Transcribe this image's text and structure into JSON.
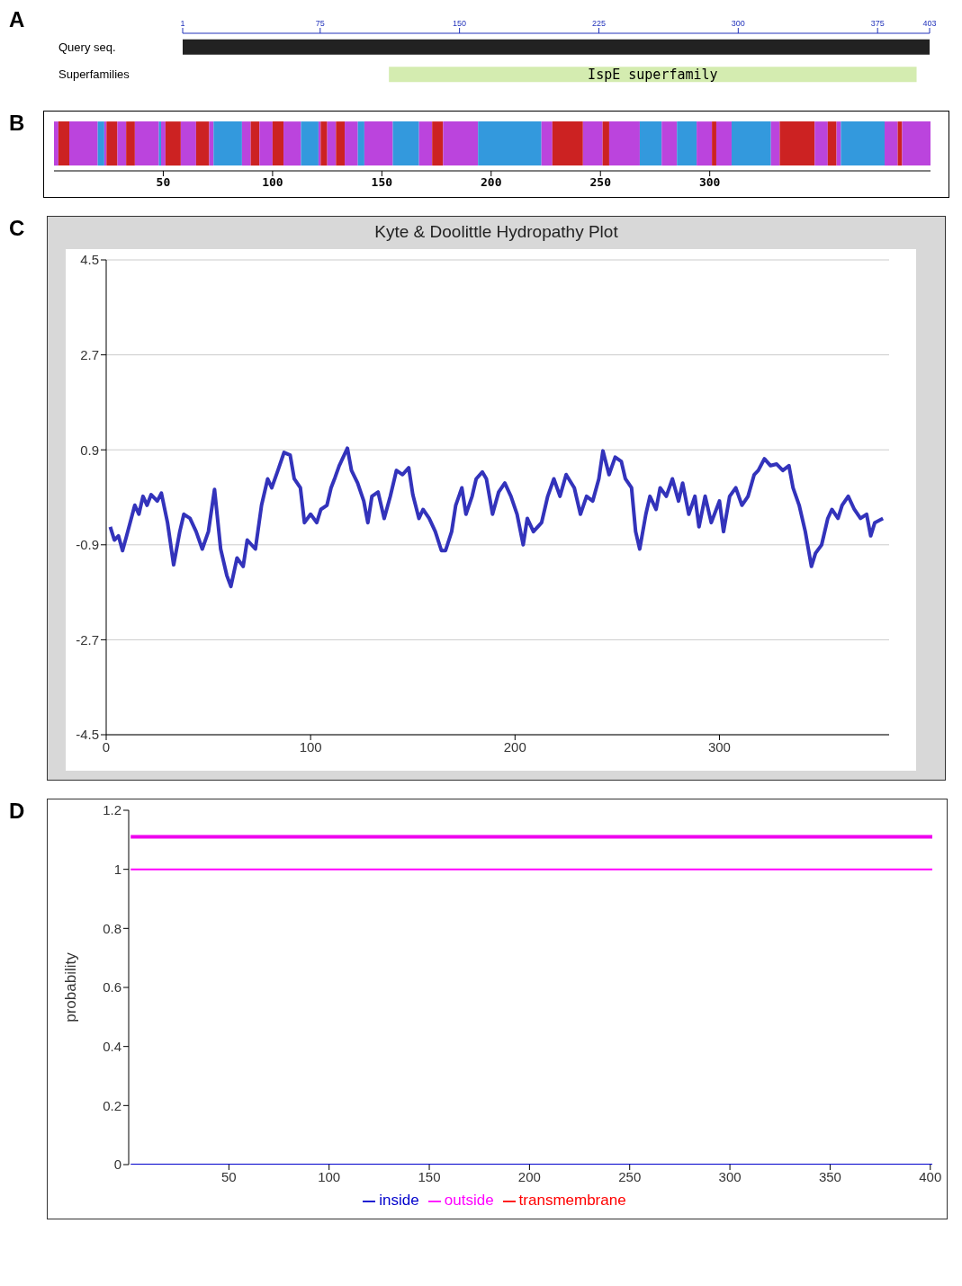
{
  "chart_data": [
    {
      "type": "bar",
      "orientation": "horizontal",
      "categories": [
        "Query seq.",
        "Superfamilies"
      ],
      "base": [
        1,
        112
      ],
      "values": [
        402,
        284
      ],
      "colors": [
        "#222222",
        "#d4ecb0"
      ],
      "xlim": [
        1,
        403
      ],
      "xticks": [
        1,
        75,
        150,
        225,
        300,
        375,
        403
      ],
      "annotations": [
        "A",
        {
          "text": "IspE superfamily",
          "x": 254,
          "y": "Superfamilies"
        }
      ]
    },
    {
      "type": "bar",
      "orientation": "horizontal",
      "stacked": true,
      "categories": [
        null
      ],
      "xlim": [
        0,
        401
      ],
      "xticks": [
        50,
        100,
        150,
        200,
        250,
        300
      ],
      "annotations": [
        "B"
      ],
      "series": [
        {
          "color": "#bb44dd",
          "values": [
            2
          ]
        },
        {
          "color": "#cc2222",
          "values": [
            5
          ]
        },
        {
          "color": "#bb44dd",
          "values": [
            13
          ]
        },
        {
          "color": "#3399dd",
          "values": [
            3
          ]
        },
        {
          "color": "#bb44dd",
          "values": [
            1
          ]
        },
        {
          "color": "#cc2222",
          "values": [
            5
          ]
        },
        {
          "color": "#bb44dd",
          "values": [
            4
          ]
        },
        {
          "color": "#cc2222",
          "values": [
            4
          ]
        },
        {
          "color": "#bb44dd",
          "values": [
            11
          ]
        },
        {
          "color": "#3399dd",
          "values": [
            1
          ]
        },
        {
          "color": "#bb44dd",
          "values": [
            2
          ]
        },
        {
          "color": "#cc2222",
          "values": [
            7
          ]
        },
        {
          "color": "#bb44dd",
          "values": [
            7
          ]
        },
        {
          "color": "#cc2222",
          "values": [
            6
          ]
        },
        {
          "color": "#bb44dd",
          "values": [
            2
          ]
        },
        {
          "color": "#3399dd",
          "values": [
            13
          ]
        },
        {
          "color": "#bb44dd",
          "values": [
            4
          ]
        },
        {
          "color": "#cc2222",
          "values": [
            4
          ]
        },
        {
          "color": "#bb44dd",
          "values": [
            6
          ]
        },
        {
          "color": "#cc2222",
          "values": [
            5
          ]
        },
        {
          "color": "#bb44dd",
          "values": [
            8
          ]
        },
        {
          "color": "#3399dd",
          "values": [
            8
          ]
        },
        {
          "color": "#bb44dd",
          "values": [
            1
          ]
        },
        {
          "color": "#cc2222",
          "values": [
            3
          ]
        },
        {
          "color": "#bb44dd",
          "values": [
            4
          ]
        },
        {
          "color": "#cc2222",
          "values": [
            4
          ]
        },
        {
          "color": "#bb44dd",
          "values": [
            6
          ]
        },
        {
          "color": "#3399dd",
          "values": [
            3
          ]
        },
        {
          "color": "#bb44dd",
          "values": [
            13
          ]
        },
        {
          "color": "#3399dd",
          "values": [
            12
          ]
        },
        {
          "color": "#bb44dd",
          "values": [
            6
          ]
        },
        {
          "color": "#cc2222",
          "values": [
            5
          ]
        },
        {
          "color": "#bb44dd",
          "values": [
            16
          ]
        },
        {
          "color": "#3399dd",
          "values": [
            29
          ]
        },
        {
          "color": "#bb44dd",
          "values": [
            5
          ]
        },
        {
          "color": "#cc2222",
          "values": [
            14
          ]
        },
        {
          "color": "#bb44dd",
          "values": [
            9
          ]
        },
        {
          "color": "#cc2222",
          "values": [
            3
          ]
        },
        {
          "color": "#bb44dd",
          "values": [
            14
          ]
        },
        {
          "color": "#3399dd",
          "values": [
            10
          ]
        },
        {
          "color": "#bb44dd",
          "values": [
            7
          ]
        },
        {
          "color": "#3399dd",
          "values": [
            9
          ]
        },
        {
          "color": "#bb44dd",
          "values": [
            7
          ]
        },
        {
          "color": "#cc2222",
          "values": [
            2
          ]
        },
        {
          "color": "#bb44dd",
          "values": [
            7
          ]
        },
        {
          "color": "#3399dd",
          "values": [
            18
          ]
        },
        {
          "color": "#bb44dd",
          "values": [
            4
          ]
        },
        {
          "color": "#cc2222",
          "values": [
            16
          ]
        },
        {
          "color": "#bb44dd",
          "values": [
            6
          ]
        },
        {
          "color": "#cc2222",
          "values": [
            4
          ]
        },
        {
          "color": "#bb44dd",
          "values": [
            2
          ]
        },
        {
          "color": "#3399dd",
          "values": [
            20
          ]
        },
        {
          "color": "#bb44dd",
          "values": [
            6
          ]
        },
        {
          "color": "#cc2222",
          "values": [
            2
          ]
        },
        {
          "color": "#bb44dd",
          "values": [
            13
          ]
        }
      ]
    },
    {
      "type": "line",
      "title": "Kyte & Doolittle Hydropathy Plot",
      "xlim": [
        0,
        383
      ],
      "xticks": [
        0,
        100,
        200,
        300
      ],
      "ylim": [
        -4.5,
        4.5
      ],
      "yticks": [
        -4.5,
        -2.7,
        -0.9,
        0.9,
        2.7,
        4.5
      ],
      "grid": "y",
      "annotations": [
        "C"
      ],
      "series": [
        {
          "color": "#3333bb",
          "x": [
            2,
            4,
            6,
            8,
            10,
            14,
            16,
            18,
            20,
            22,
            25,
            27,
            30,
            33,
            36,
            38,
            41,
            44,
            47,
            50,
            53,
            56,
            59,
            61,
            64,
            67,
            69,
            73,
            76,
            79,
            81,
            84,
            87,
            90,
            92,
            95,
            97,
            100,
            103,
            105,
            108,
            110,
            112,
            114,
            118,
            120,
            123,
            126,
            128,
            130,
            133,
            136,
            139,
            142,
            145,
            148,
            150,
            153,
            155,
            158,
            161,
            164,
            166,
            169,
            171,
            174,
            176,
            179,
            181,
            184,
            186,
            189,
            192,
            195,
            198,
            201,
            204,
            206,
            209,
            213,
            216,
            219,
            222,
            225,
            229,
            232,
            235,
            238,
            241,
            243,
            246,
            249,
            252,
            254,
            257,
            259,
            261,
            264,
            266,
            269,
            271,
            274,
            277,
            280,
            282,
            285,
            288,
            290,
            293,
            296,
            300,
            302,
            305,
            308,
            311,
            314,
            317,
            319,
            322,
            325,
            328,
            331,
            334,
            336,
            339,
            342,
            345,
            347,
            350,
            353,
            355,
            358,
            360,
            363,
            366,
            369,
            372,
            374,
            376,
            380
          ],
          "values": [
            -0.56,
            -0.81,
            -0.73,
            -1.01,
            -0.73,
            -0.15,
            -0.32,
            0.02,
            -0.15,
            0.05,
            -0.07,
            0.08,
            -0.48,
            -1.28,
            -0.65,
            -0.32,
            -0.4,
            -0.65,
            -0.98,
            -0.65,
            0.15,
            -0.98,
            -1.48,
            -1.69,
            -1.15,
            -1.31,
            -0.81,
            -0.98,
            -0.15,
            0.35,
            0.18,
            0.51,
            0.85,
            0.8,
            0.35,
            0.18,
            -0.48,
            -0.32,
            -0.48,
            -0.23,
            -0.15,
            0.18,
            0.38,
            0.6,
            0.93,
            0.51,
            0.27,
            -0.07,
            -0.48,
            0.02,
            0.1,
            -0.4,
            0.02,
            0.51,
            0.43,
            0.56,
            0.05,
            -0.4,
            -0.23,
            -0.4,
            -0.65,
            -1.01,
            -1.01,
            -0.65,
            -0.15,
            0.18,
            -0.32,
            0.02,
            0.35,
            0.48,
            0.35,
            -0.32,
            0.1,
            0.27,
            0.02,
            -0.32,
            -0.9,
            -0.4,
            -0.65,
            -0.48,
            0.02,
            0.35,
            0.02,
            0.43,
            0.18,
            -0.32,
            0.02,
            -0.07,
            0.35,
            0.88,
            0.43,
            0.76,
            0.68,
            0.35,
            0.18,
            -0.65,
            -0.98,
            -0.32,
            0.02,
            -0.23,
            0.18,
            0.02,
            0.35,
            -0.07,
            0.27,
            -0.32,
            0.02,
            -0.56,
            0.02,
            -0.48,
            -0.07,
            -0.65,
            0.02,
            0.18,
            -0.15,
            0.02,
            0.43,
            0.51,
            0.73,
            0.6,
            0.63,
            0.51,
            0.6,
            0.18,
            -0.15,
            -0.65,
            -1.31,
            -1.06,
            -0.9,
            -0.4,
            -0.23,
            -0.4,
            -0.15,
            0.02,
            -0.23,
            -0.4,
            -0.32,
            -0.73,
            -0.48,
            -0.4
          ]
        }
      ]
    },
    {
      "type": "line",
      "ylabel": "probability",
      "xlim": [
        0,
        401
      ],
      "xticks": [
        50,
        100,
        150,
        200,
        250,
        300,
        350,
        400
      ],
      "ylim": [
        0,
        1.2
      ],
      "yticks": [
        0,
        0.2,
        0.4,
        0.6,
        0.8,
        1,
        1.2
      ],
      "legend": "bottom",
      "annotations": [
        "D"
      ],
      "series": [
        {
          "name": "transmembrane",
          "color": "#ff0000"
        },
        {
          "name": "inside",
          "color": "#0000cc",
          "x": [
            1,
            401
          ],
          "values": [
            0,
            0
          ]
        },
        {
          "name": "outside",
          "color": "#ff00ff",
          "x": [
            1,
            401
          ],
          "values": [
            1,
            1
          ]
        },
        {
          "color": "#ee00ee",
          "x": [
            1,
            401
          ],
          "values": [
            1.11,
            1.11
          ]
        }
      ]
    }
  ]
}
